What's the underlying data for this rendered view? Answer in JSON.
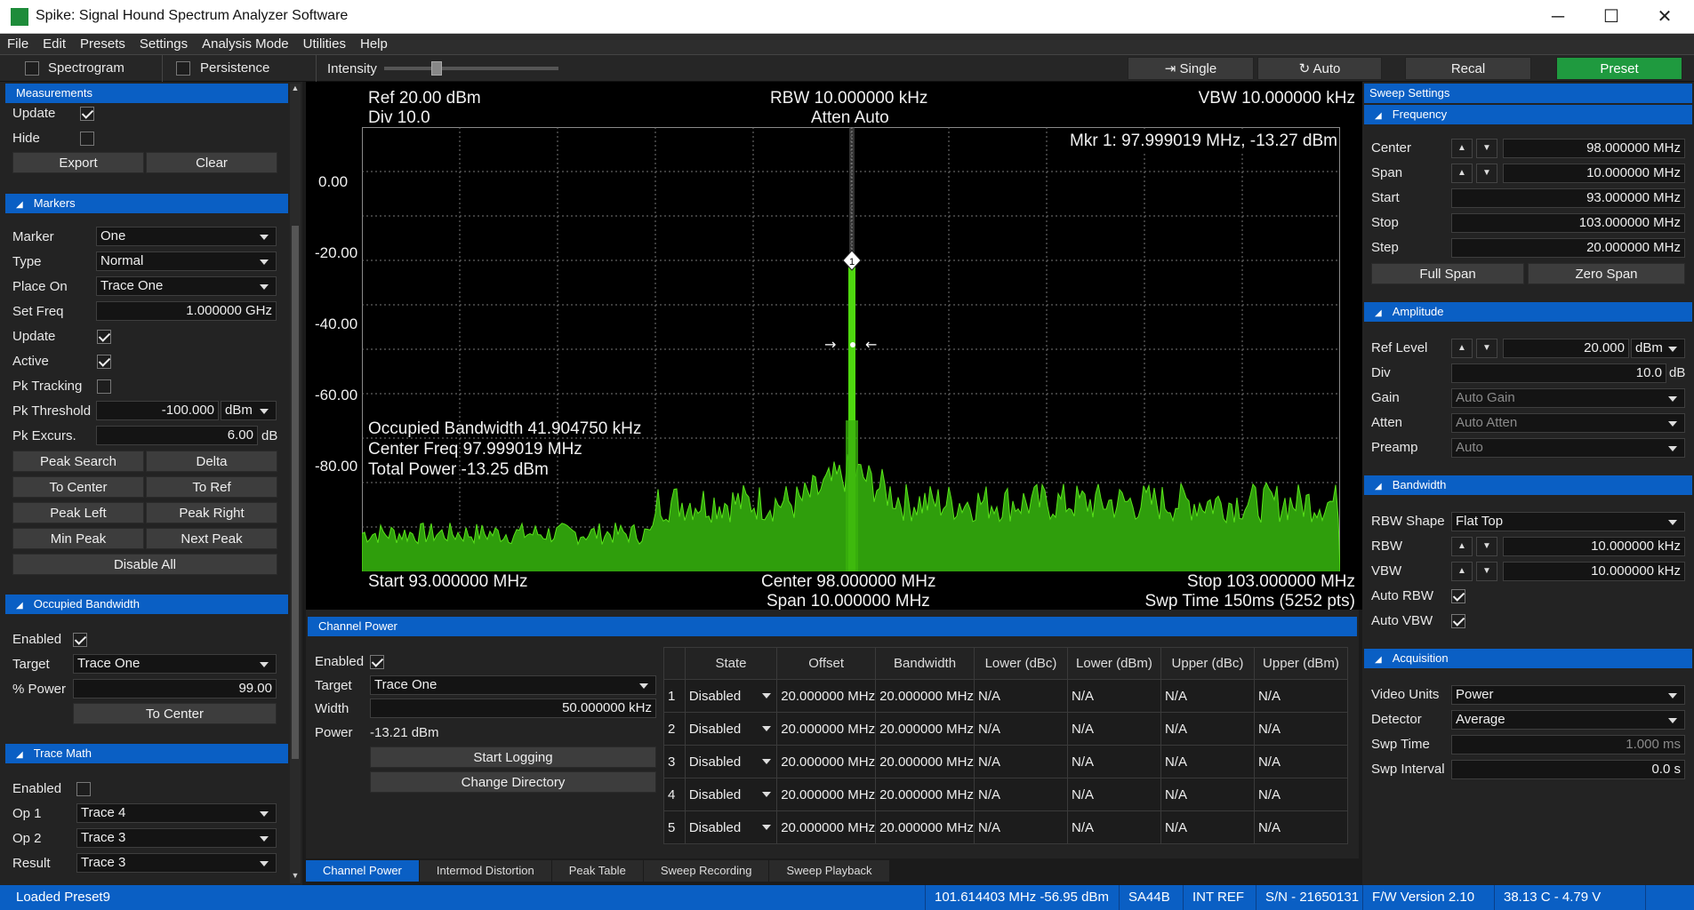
{
  "window": {
    "title": "Spike: Signal Hound Spectrum Analyzer Software",
    "minimize": "─",
    "maximize": "☐",
    "close": "✕"
  },
  "menu": [
    "File",
    "Edit",
    "Presets",
    "Settings",
    "Analysis Mode",
    "Utilities",
    "Help"
  ],
  "toolbar": {
    "spectrogram": "Spectrogram",
    "persistence": "Persistence",
    "intensity": "Intensity",
    "intensity_level": 0.3,
    "single": "Single",
    "auto": "Auto",
    "recal": "Recal",
    "preset": "Preset"
  },
  "measurements": {
    "header": "Measurements",
    "update": "Update",
    "hide": "Hide",
    "export": "Export",
    "clear": "Clear"
  },
  "markers": {
    "header": "Markers",
    "marker_label": "Marker",
    "marker_value": "One",
    "type_label": "Type",
    "type_value": "Normal",
    "placeon_label": "Place On",
    "placeon_value": "Trace One",
    "setfreq_label": "Set Freq",
    "setfreq_value": "1.000000 GHz",
    "update_label": "Update",
    "active_label": "Active",
    "pktracking_label": "Pk Tracking",
    "pkthreshold_label": "Pk Threshold",
    "pkthreshold_value": "-100.000",
    "pkthreshold_unit": "dBm",
    "pkexcurs_label": "Pk Excurs.",
    "pkexcurs_value": "6.00",
    "pkexcurs_unit": "dB",
    "buttons": [
      "Peak Search",
      "Delta",
      "To Center",
      "To Ref",
      "Peak Left",
      "Peak Right",
      "Min Peak",
      "Next Peak"
    ],
    "disable_all": "Disable All"
  },
  "occbw": {
    "header": "Occupied Bandwidth",
    "enabled": "Enabled",
    "target_label": "Target",
    "target_value": "Trace One",
    "power_label": "% Power",
    "power_value": "99.00",
    "to_center": "To Center"
  },
  "tracemath": {
    "header": "Trace Math",
    "enabled": "Enabled",
    "op1_label": "Op 1",
    "op1_value": "Trace 4",
    "op2_label": "Op 2",
    "op2_value": "Trace 3",
    "result_label": "Result",
    "result_value": "Trace 3"
  },
  "plot": {
    "ref": "Ref 20.00 dBm",
    "div": "Div 10.0",
    "rbw": "RBW 10.000000 kHz",
    "atten": "Atten Auto",
    "vbw": "VBW 10.000000 kHz",
    "marker_readout": "Mkr 1: 97.999019 MHz, -13.27 dBm",
    "yticks": [
      "0.00",
      "-20.00",
      "-40.00",
      "-60.00",
      "-80.00"
    ],
    "occ_bw": "Occupied Bandwidth 41.904750 kHz",
    "center_freq": "Center Freq 97.999019 MHz",
    "total_power": "Total Power -13.25 dBm",
    "start": "Start 93.000000 MHz",
    "center": "Center 98.000000 MHz",
    "span": "Span 10.000000 MHz",
    "stop": "Stop 103.000000 MHz",
    "swp": "Swp Time 150ms (5252 pts)",
    "marker_label": "1"
  },
  "channel_power": {
    "header": "Channel Power",
    "enabled": "Enabled",
    "target_label": "Target",
    "target_value": "Trace One",
    "width_label": "Width",
    "width_value": "50.000000 kHz",
    "power_label": "Power",
    "power_value": "-13.21 dBm",
    "start_logging": "Start Logging",
    "change_dir": "Change Directory",
    "columns": [
      "",
      "State",
      "Offset",
      "Bandwidth",
      "Lower (dBc)",
      "Lower (dBm)",
      "Upper (dBc)",
      "Upper (dBm)"
    ],
    "rows": [
      [
        "1",
        "Disabled",
        "20.000000 MHz",
        "20.000000 MHz",
        "N/A",
        "N/A",
        "N/A",
        "N/A"
      ],
      [
        "2",
        "Disabled",
        "20.000000 MHz",
        "20.000000 MHz",
        "N/A",
        "N/A",
        "N/A",
        "N/A"
      ],
      [
        "3",
        "Disabled",
        "20.000000 MHz",
        "20.000000 MHz",
        "N/A",
        "N/A",
        "N/A",
        "N/A"
      ],
      [
        "4",
        "Disabled",
        "20.000000 MHz",
        "20.000000 MHz",
        "N/A",
        "N/A",
        "N/A",
        "N/A"
      ],
      [
        "5",
        "Disabled",
        "20.000000 MHz",
        "20.000000 MHz",
        "N/A",
        "N/A",
        "N/A",
        "N/A"
      ]
    ]
  },
  "tabs": [
    "Channel Power",
    "Intermod Distortion",
    "Peak Table",
    "Sweep Recording",
    "Sweep Playback"
  ],
  "sweep": {
    "header": "Sweep Settings",
    "freq_header": "Frequency",
    "center_label": "Center",
    "center_value": "98.000000 MHz",
    "span_label": "Span",
    "span_value": "10.000000 MHz",
    "start_label": "Start",
    "start_value": "93.000000 MHz",
    "stop_label": "Stop",
    "stop_value": "103.000000 MHz",
    "step_label": "Step",
    "step_value": "20.000000 MHz",
    "full_span": "Full Span",
    "zero_span": "Zero Span",
    "amp_header": "Amplitude",
    "reflevel_label": "Ref Level",
    "reflevel_value": "20.000",
    "reflevel_unit": "dBm",
    "div_label": "Div",
    "div_value": "10.0",
    "div_unit": "dB",
    "gain_label": "Gain",
    "gain_value": "Auto Gain",
    "atten_label": "Atten",
    "atten_value": "Auto Atten",
    "preamp_label": "Preamp",
    "preamp_value": "Auto",
    "bw_header": "Bandwidth",
    "rbwshape_label": "RBW Shape",
    "rbwshape_value": "Flat Top",
    "rbw_label": "RBW",
    "rbw_value": "10.000000 kHz",
    "vbw_label": "VBW",
    "vbw_value": "10.000000 kHz",
    "autorbw_label": "Auto RBW",
    "autovbw_label": "Auto VBW",
    "acq_header": "Acquisition",
    "videounits_label": "Video Units",
    "videounits_value": "Power",
    "detector_label": "Detector",
    "detector_value": "Average",
    "swptime_label": "Swp Time",
    "swptime_value": "1.000 ms",
    "swpinterval_label": "Swp Interval",
    "swpinterval_value": "0.0 s"
  },
  "status": {
    "left": "Loaded Preset9",
    "freq": "101.614403 MHz  -56.95 dBm",
    "model": "SA44B",
    "ref": "INT REF",
    "sn": "S/N - 21650131",
    "fw": "F/W Version 2.10",
    "temp": "38.13 C  -  4.79 V"
  },
  "colors": {
    "accent": "#0a5fc4",
    "trace": "#4fd80f",
    "preset": "#1f9a3f"
  }
}
